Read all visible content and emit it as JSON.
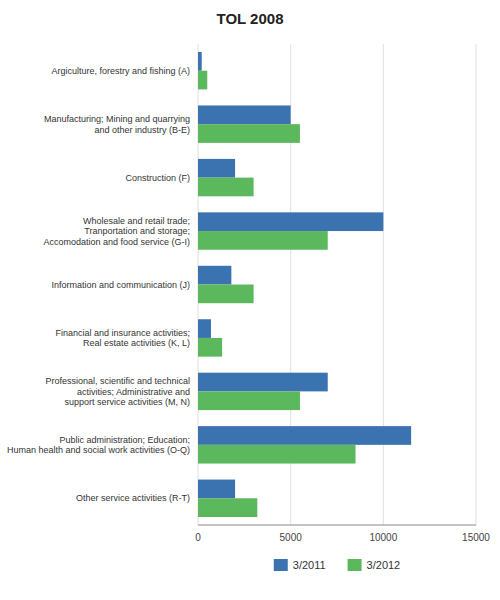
{
  "chart_data": {
    "type": "bar",
    "orientation": "horizontal",
    "title": "TOL 2008",
    "categories": [
      "Argiculture, forestry and fishing (A)",
      "Manufacturing; Mining and quarrying\nand other industry (B-E)",
      "Construction (F)",
      "Wholesale and retail trade;\nTranportation and storage;\nAccomodation and food service (G-I)",
      "Information and communication (J)",
      "Financial and insurance activities;\nReal estate activities (K, L)",
      "Professional, scientific and technical\nactivities; Administrative and\nsupport service activities (M, N)",
      "Public administration; Education;\nHuman health and social work activities (O-Q)",
      "Other service activities (R-T)"
    ],
    "series": [
      {
        "name": "3/2011",
        "color": "#3B72B0",
        "values": [
          200,
          5000,
          2000,
          10000,
          1800,
          700,
          7000,
          11500,
          2000
        ]
      },
      {
        "name": "3/2012",
        "color": "#5CB85C",
        "values": [
          500,
          5500,
          3000,
          7000,
          3000,
          1300,
          5500,
          8500,
          3200
        ]
      }
    ],
    "xlim": [
      0,
      15000
    ],
    "xticks": [
      0,
      5000,
      10000,
      15000
    ],
    "grid": true,
    "legend": "bottom"
  }
}
